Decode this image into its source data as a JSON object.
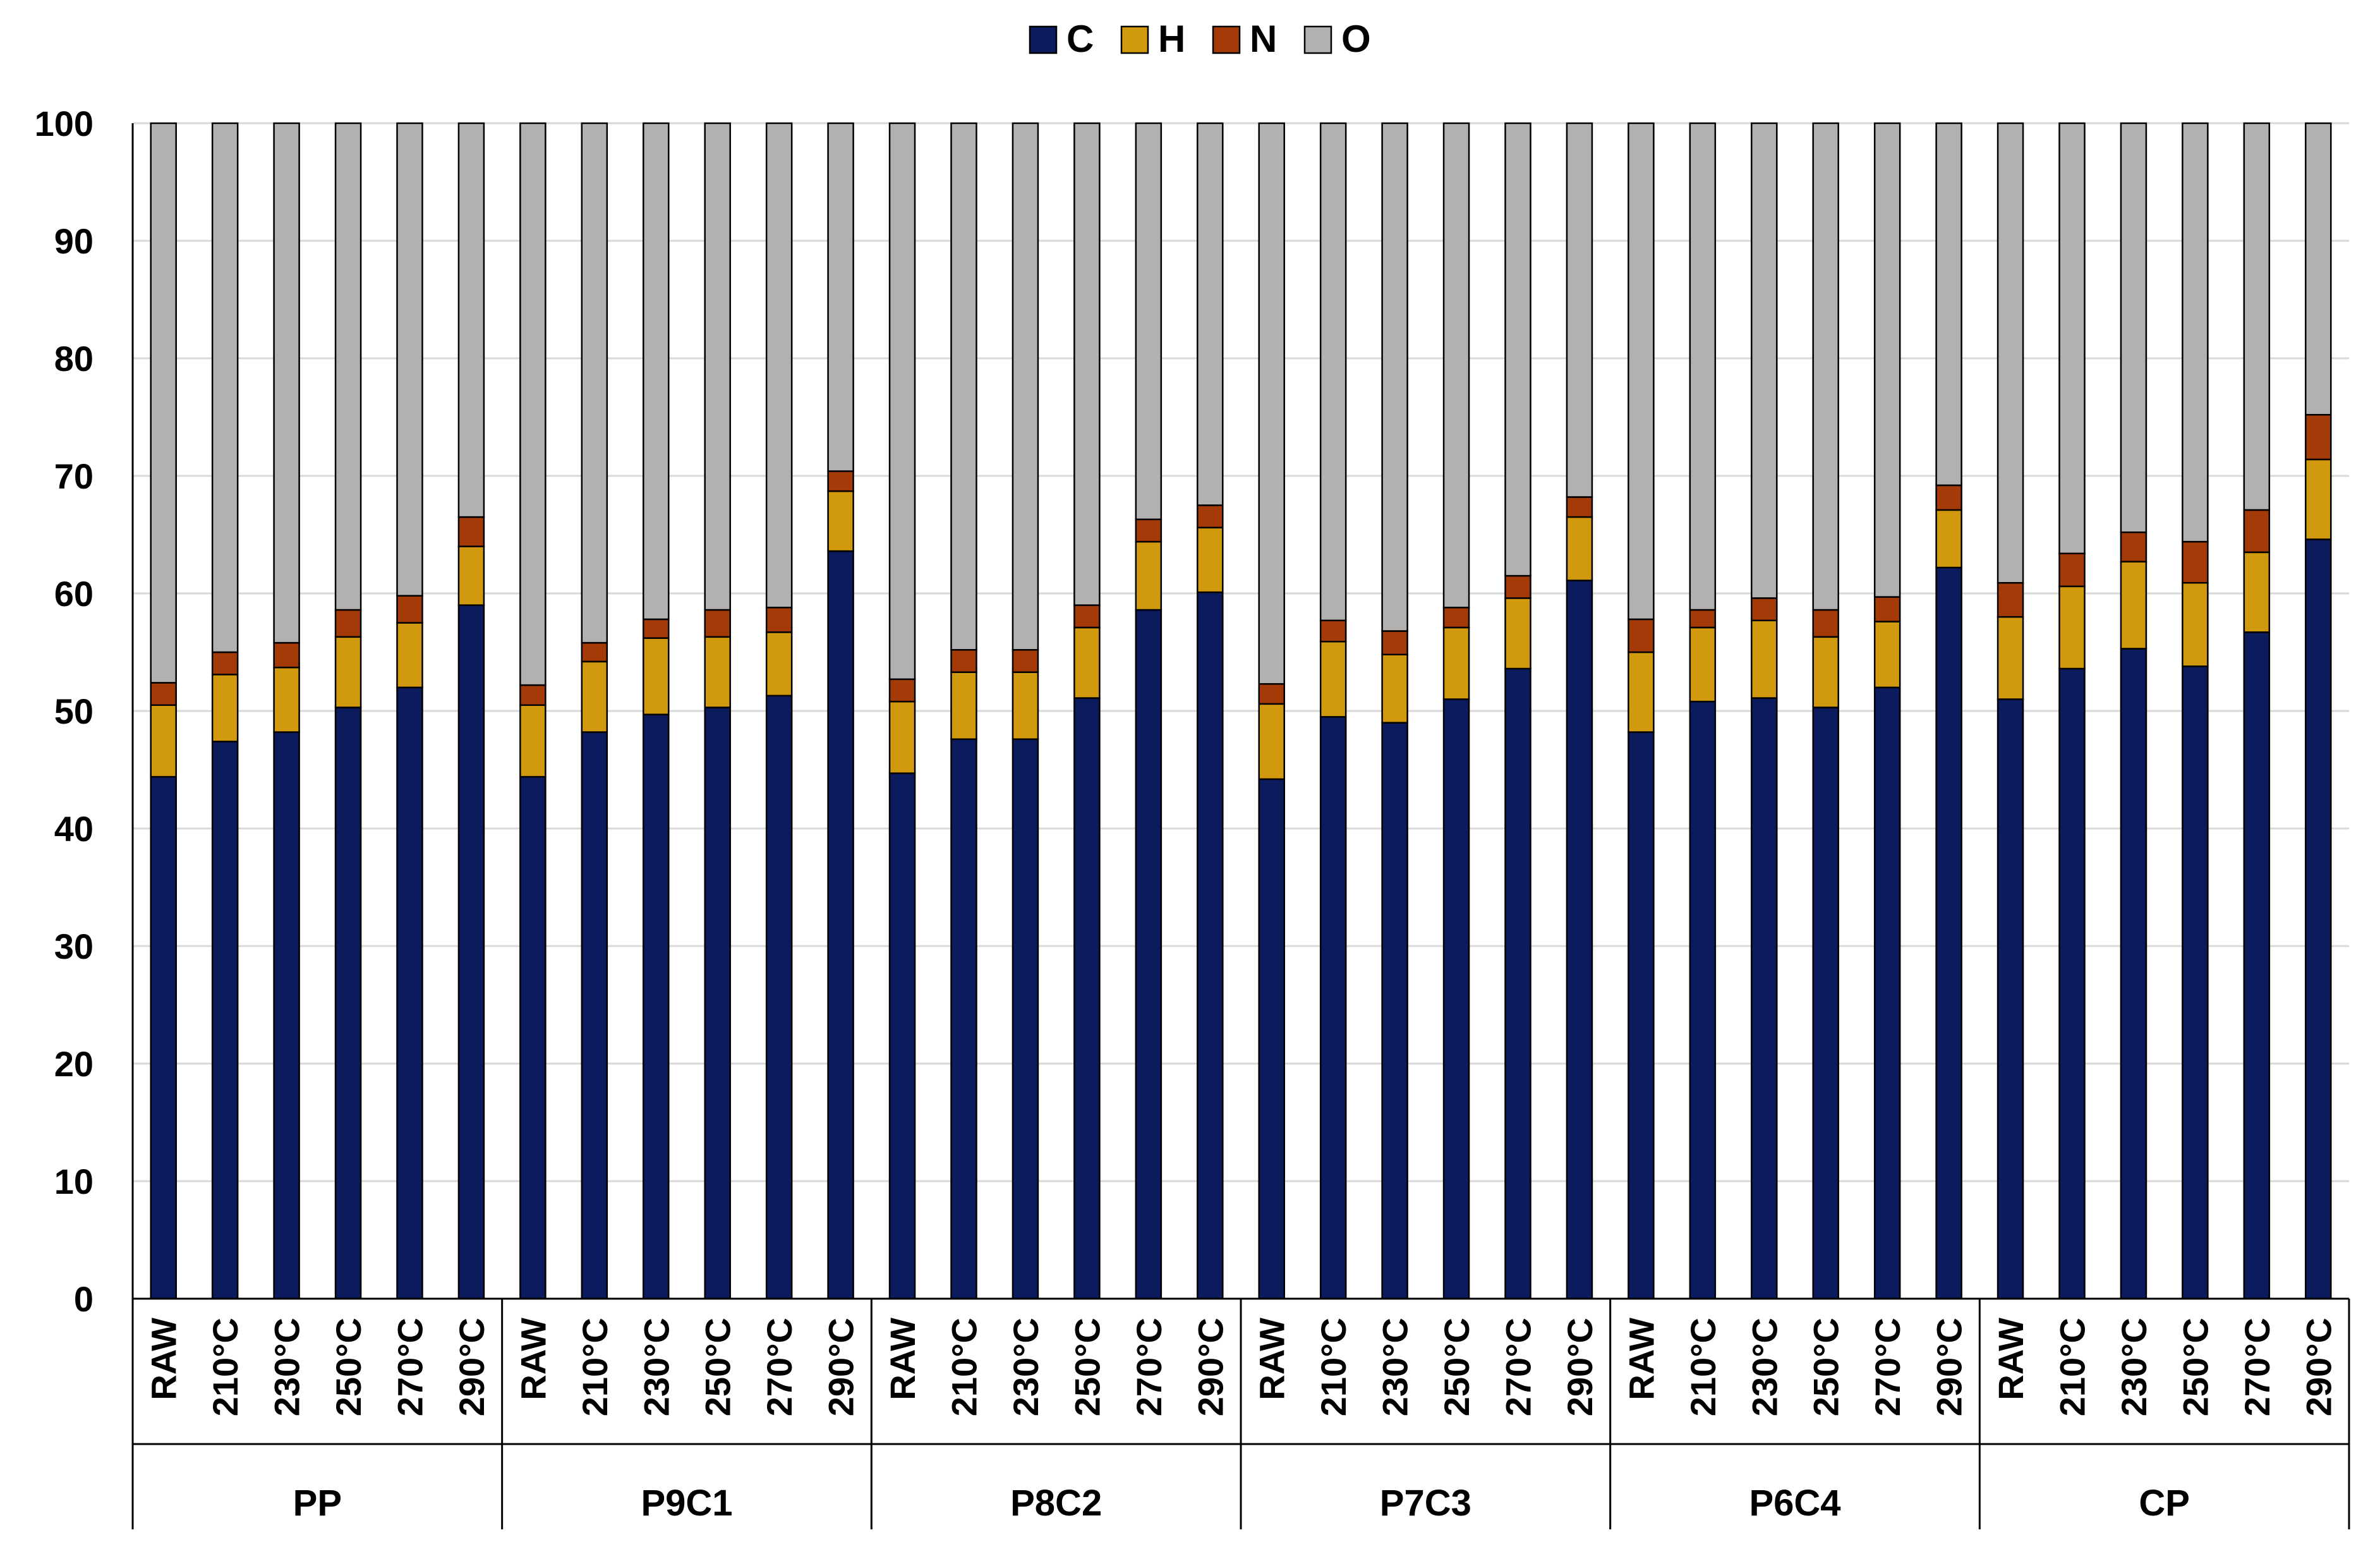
{
  "chart_data": {
    "type": "bar",
    "stacked": true,
    "title": "",
    "xlabel": "",
    "ylabel": "",
    "ylim": [
      0,
      100
    ],
    "yticks": [
      0,
      10,
      20,
      30,
      40,
      50,
      60,
      70,
      80,
      90,
      100
    ],
    "grid": true,
    "legend_position": "top-center",
    "legend": [
      "C",
      "H",
      "N",
      "O"
    ],
    "colors": {
      "C": "#0b1b5e",
      "H": "#d19a0e",
      "N": "#a33a07",
      "O": "#b3b0b0"
    },
    "groups": [
      "PP",
      "P9C1",
      "P8C2",
      "P7C3",
      "P6C4",
      "CP"
    ],
    "categories": [
      "RAW",
      "210°C",
      "230°C",
      "250°C",
      "270°C",
      "290°C"
    ],
    "series": [
      {
        "name": "C",
        "values": [
          [
            44.4,
            47.4,
            48.2,
            50.3,
            52.0,
            59.0
          ],
          [
            44.4,
            48.2,
            49.7,
            50.3,
            51.3,
            63.6
          ],
          [
            44.7,
            47.6,
            47.6,
            51.1,
            58.6,
            60.1
          ],
          [
            44.2,
            49.5,
            49.0,
            51.0,
            53.6,
            61.1
          ],
          [
            48.2,
            50.8,
            51.1,
            50.3,
            52.0,
            62.2
          ],
          [
            51.0,
            53.6,
            55.3,
            53.8,
            56.7,
            64.6
          ]
        ]
      },
      {
        "name": "H",
        "values": [
          [
            6.1,
            5.7,
            5.5,
            6.0,
            5.5,
            5.0
          ],
          [
            6.1,
            6.0,
            6.5,
            6.0,
            5.4,
            5.1
          ],
          [
            6.1,
            5.7,
            5.7,
            6.0,
            5.8,
            5.5
          ],
          [
            6.4,
            6.4,
            5.8,
            6.1,
            6.0,
            5.4
          ],
          [
            6.8,
            6.3,
            6.6,
            6.0,
            5.6,
            4.9
          ],
          [
            7.0,
            7.0,
            7.4,
            7.1,
            6.8,
            6.8
          ]
        ]
      },
      {
        "name": "N",
        "values": [
          [
            1.9,
            1.9,
            2.1,
            2.3,
            2.3,
            2.5
          ],
          [
            1.7,
            1.6,
            1.6,
            2.3,
            2.1,
            1.7
          ],
          [
            1.9,
            1.9,
            1.9,
            1.9,
            1.9,
            1.9
          ],
          [
            1.7,
            1.8,
            2.0,
            1.7,
            1.9,
            1.7
          ],
          [
            2.8,
            1.5,
            1.9,
            2.3,
            2.1,
            2.1
          ],
          [
            2.9,
            2.8,
            2.5,
            3.5,
            3.6,
            3.8
          ]
        ]
      },
      {
        "name": "O",
        "values": [
          [
            47.6,
            45.0,
            44.2,
            41.4,
            40.2,
            33.5
          ],
          [
            47.8,
            44.2,
            42.2,
            41.4,
            41.2,
            29.6
          ],
          [
            47.3,
            44.8,
            44.8,
            41.0,
            33.7,
            32.5
          ],
          [
            47.7,
            42.3,
            43.2,
            41.2,
            38.5,
            31.8
          ],
          [
            42.2,
            41.4,
            40.4,
            41.4,
            40.3,
            30.8
          ],
          [
            39.1,
            36.6,
            34.8,
            35.6,
            32.9,
            24.8
          ]
        ]
      }
    ]
  }
}
